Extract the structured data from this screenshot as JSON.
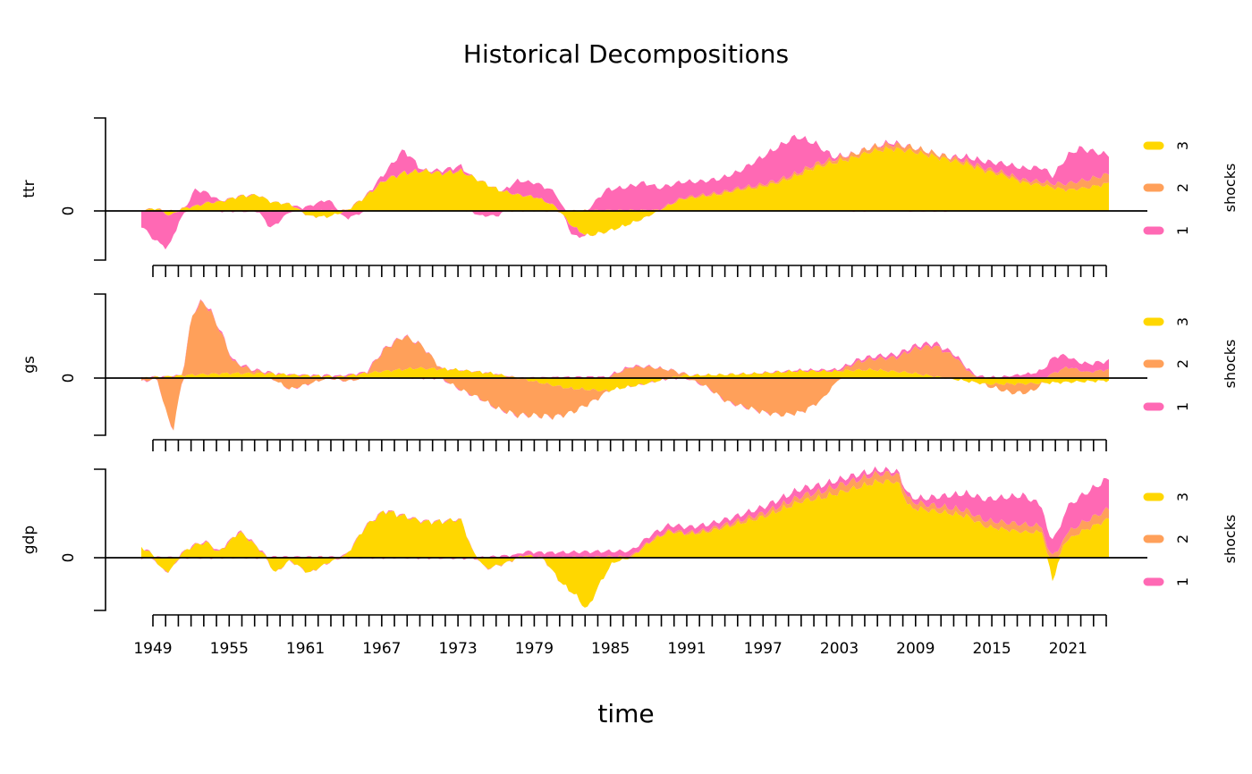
{
  "chart_data": {
    "type": "area",
    "title": "Historical Decompositions",
    "xlabel": "time",
    "x_range": [
      1948.25,
      2024.75
    ],
    "x_tick_labels": [
      "1949",
      "1955",
      "1961",
      "1967",
      "1973",
      "1979",
      "1985",
      "1991",
      "1997",
      "2003",
      "2009",
      "2015",
      "2021"
    ],
    "legend_title": "shocks",
    "legend_entries": [
      "3",
      "2",
      "1"
    ],
    "colors": {
      "1": "#FF69B4",
      "2": "#FFA05A",
      "3": "#FFD700"
    },
    "panels": [
      {
        "name": "ttr",
        "ylabel": "ttr",
        "y_tick_labels": [
          "0"
        ],
        "ylim": [
          -1,
          2
        ],
        "series": {
          "3": {
            "x": [
              1948.25,
              1949.5,
              1950.5,
              1951.5,
              1952.5,
              1953.5,
              1954.5,
              1956,
              1957.5,
              1958.5,
              1960,
              1961.5,
              1963,
              1964.5,
              1966,
              1967.5,
              1969,
              1970.5,
              1972,
              1973.5,
              1975,
              1976.5,
              1978,
              1979.5,
              1981,
              1982.3,
              1983.5,
              1985,
              1986.5,
              1988,
              1989.5,
              1991,
              1992.5,
              1994,
              1995.5,
              1997,
              1998.5,
              2000,
              2001.5,
              2003,
              2004.5,
              2006,
              2007.5,
              2009,
              2010.5,
              2012,
              2013.5,
              2015,
              2016.5,
              2018,
              2019.5,
              2020.3,
              2021.5,
              2023,
              2024.75
            ],
            "y": [
              0.0,
              0.05,
              -0.1,
              0.05,
              0.1,
              0.18,
              0.2,
              0.32,
              0.35,
              0.2,
              0.15,
              -0.1,
              -0.12,
              0.0,
              0.3,
              0.65,
              0.8,
              0.85,
              0.8,
              0.85,
              0.65,
              0.45,
              0.35,
              0.3,
              0.1,
              -0.3,
              -0.5,
              -0.42,
              -0.3,
              -0.15,
              0.05,
              0.25,
              0.3,
              0.35,
              0.45,
              0.5,
              0.6,
              0.75,
              0.95,
              1.05,
              1.15,
              1.3,
              1.35,
              1.3,
              1.2,
              1.1,
              1.0,
              0.85,
              0.75,
              0.6,
              0.55,
              0.5,
              0.45,
              0.5,
              0.6
            ]
          },
          "2": {
            "x": [
              1948.25,
              1960,
              1966,
              1970,
              1975,
              1980,
              1985,
              1990,
              1995,
              2000,
              2004,
              2008,
              2012,
              2015,
              2018,
              2020.3,
              2022,
              2024.75
            ],
            "y": [
              0.0,
              0.0,
              0.02,
              0.0,
              0.0,
              0.0,
              0.02,
              0.02,
              0.03,
              0.05,
              0.08,
              0.1,
              0.06,
              0.05,
              0.05,
              0.08,
              0.15,
              0.2
            ]
          },
          "1": {
            "x": [
              1948.25,
              1949.5,
              1950.3,
              1951.3,
              1952.5,
              1953.5,
              1954.5,
              1956,
              1957.5,
              1958.5,
              1960,
              1961.5,
              1963,
              1964.5,
              1966,
              1967.5,
              1969,
              1970.5,
              1972,
              1973.5,
              1975,
              1976.5,
              1978,
              1979.5,
              1981,
              1982.3,
              1983.5,
              1985,
              1986.5,
              1988,
              1989.5,
              1991,
              1992.5,
              1994,
              1995.5,
              1997,
              1998.5,
              2000,
              2001.5,
              2003,
              2004.5,
              2006,
              2007.5,
              2009,
              2010.5,
              2012,
              2013.5,
              2015,
              2016.5,
              2018,
              2019.5,
              2020.3,
              2021.5,
              2022.5,
              2024.75
            ],
            "y": [
              -0.3,
              -0.65,
              -0.7,
              -0.2,
              0.35,
              0.2,
              0.0,
              0.0,
              0.0,
              -0.35,
              0.0,
              0.1,
              0.25,
              -0.15,
              0.0,
              0.15,
              0.5,
              0.0,
              0.05,
              0.1,
              -0.1,
              -0.1,
              0.3,
              0.3,
              0.3,
              -0.2,
              0.0,
              0.45,
              0.5,
              0.6,
              0.45,
              0.35,
              0.3,
              0.3,
              0.35,
              0.55,
              0.7,
              0.8,
              0.45,
              0.05,
              0.0,
              0.0,
              0.05,
              0.0,
              0.0,
              0.0,
              0.1,
              0.15,
              0.2,
              0.25,
              0.3,
              0.15,
              0.6,
              0.7,
              0.4
            ]
          }
        }
      },
      {
        "name": "gs",
        "ylabel": "gs",
        "y_tick_labels": [
          "0"
        ],
        "ylim": [
          -1,
          1.5
        ],
        "series": {
          "3": {
            "x": [
              1948.25,
              1950,
              1952,
              1955,
              1958,
              1961,
              1964,
              1967,
              1970,
              1973,
              1976,
              1979,
              1982,
              1985,
              1988,
              1991,
              1994,
              1997,
              2000,
              2003,
              2006,
              2009,
              2012,
              2015,
              2018,
              2021,
              2024.75
            ],
            "y": [
              0.0,
              0.02,
              0.05,
              0.08,
              0.08,
              0.05,
              0.03,
              0.12,
              0.18,
              0.15,
              0.08,
              -0.05,
              -0.18,
              -0.22,
              -0.1,
              0.05,
              0.06,
              0.08,
              0.12,
              0.12,
              0.15,
              0.1,
              0.0,
              -0.1,
              -0.1,
              -0.08,
              -0.05
            ]
          },
          "2": {
            "x": [
              1948.25,
              1949.5,
              1950.2,
              1950.8,
              1951.5,
              1952.3,
              1953.2,
              1954.3,
              1955.5,
              1957,
              1958.5,
              1960,
              1961.5,
              1963,
              1964.5,
              1966,
              1967.5,
              1969,
              1970.5,
              1972,
              1973.5,
              1975,
              1976.5,
              1978,
              1979.5,
              1981,
              1982.5,
              1984,
              1985.5,
              1987,
              1988.5,
              1990,
              1991.5,
              1993,
              1994.5,
              1996,
              1997.5,
              1999,
              2000.5,
              2002,
              2003.5,
              2005,
              2006.5,
              2008,
              2009.5,
              2011,
              2012.5,
              2014,
              2015.5,
              2017,
              2018.5,
              2020,
              2021.5,
              2023,
              2024.75
            ],
            "y": [
              -0.05,
              0.0,
              -0.6,
              -0.9,
              0.0,
              1.1,
              1.3,
              0.85,
              0.2,
              0.05,
              0.0,
              -0.2,
              -0.1,
              0.0,
              -0.05,
              0.0,
              0.4,
              0.6,
              0.4,
              0.0,
              -0.2,
              -0.35,
              -0.55,
              -0.65,
              -0.6,
              -0.55,
              -0.4,
              -0.2,
              0.05,
              0.2,
              0.2,
              0.15,
              0.0,
              -0.15,
              -0.4,
              -0.5,
              -0.6,
              -0.65,
              -0.6,
              -0.4,
              0.0,
              0.15,
              0.2,
              0.25,
              0.45,
              0.55,
              0.4,
              0.05,
              -0.05,
              -0.15,
              -0.15,
              0.05,
              0.2,
              0.1,
              0.15
            ]
          },
          "1": {
            "x": [
              1948.25,
              1955,
              1960,
              1966,
              1972,
              1978,
              1984,
              1990,
              1996,
              2002,
              2008,
              2012,
              2016,
              2019,
              2020.5,
              2022,
              2024.75
            ],
            "y": [
              0.0,
              0.02,
              0.0,
              0.02,
              0.0,
              0.0,
              0.02,
              0.0,
              0.0,
              0.02,
              0.05,
              0.05,
              0.02,
              0.1,
              0.3,
              0.15,
              0.15
            ]
          }
        }
      },
      {
        "name": "gdp",
        "ylabel": "gdp",
        "y_tick_labels": [
          "0"
        ],
        "ylim": [
          -1,
          1.7
        ],
        "series": {
          "3": {
            "x": [
              1948.25,
              1949,
              1949.8,
              1950.5,
              1951.5,
              1952.5,
              1953.5,
              1954.3,
              1955,
              1956,
              1957,
              1958,
              1958.8,
              1960,
              1961.5,
              1963,
              1964.5,
              1966,
              1967.5,
              1969,
              1970.5,
              1972,
              1973.5,
              1974.5,
              1975.5,
              1977,
              1978.5,
              1980,
              1981.5,
              1982.5,
              1983.5,
              1984.5,
              1985.5,
              1987,
              1988.5,
              1990,
              1991.5,
              1993,
              1994.5,
              1996,
              1997.5,
              1999,
              2000.5,
              2002,
              2003.5,
              2005,
              2006.5,
              2008,
              2009,
              2010.5,
              2012,
              2013.5,
              2015,
              2016.5,
              2018,
              2019.5,
              2020.3,
              2021.2,
              2022.5,
              2024.75
            ],
            "y": [
              0.2,
              0.1,
              -0.2,
              -0.25,
              0.1,
              0.25,
              0.3,
              0.1,
              0.25,
              0.5,
              0.3,
              0.05,
              -0.3,
              -0.05,
              -0.3,
              -0.1,
              0.05,
              0.6,
              0.9,
              0.8,
              0.7,
              0.7,
              0.75,
              0.1,
              -0.2,
              -0.1,
              0.05,
              0.0,
              -0.5,
              -0.7,
              -1.0,
              -0.5,
              -0.1,
              0.0,
              0.3,
              0.5,
              0.45,
              0.5,
              0.6,
              0.7,
              0.8,
              0.95,
              1.1,
              1.15,
              1.25,
              1.35,
              1.45,
              1.45,
              0.95,
              0.9,
              0.85,
              0.8,
              0.6,
              0.55,
              0.5,
              0.5,
              -0.45,
              0.3,
              0.5,
              0.75
            ]
          },
          "2": {
            "x": [
              1948.25,
              1960,
              1970,
              1980,
              1985,
              1990,
              1995,
              2000,
              2004,
              2008,
              2010,
              2014,
              2018,
              2020.3,
              2021.5,
              2024.75
            ],
            "y": [
              0.0,
              0.0,
              0.0,
              0.0,
              0.02,
              0.02,
              0.05,
              0.1,
              0.15,
              0.15,
              0.1,
              0.1,
              0.15,
              0.1,
              0.15,
              0.2
            ]
          },
          "1": {
            "x": [
              1948.25,
              1955,
              1965,
              1975,
              1980,
              1985,
              1990,
              1995,
              2000,
              2005,
              2008,
              2010,
              2014,
              2018,
              2020.3,
              2021.5,
              2024.75
            ],
            "y": [
              0.0,
              0.02,
              0.0,
              0.0,
              0.1,
              0.1,
              0.1,
              0.1,
              0.15,
              0.1,
              0.05,
              0.1,
              0.35,
              0.55,
              0.3,
              0.5,
              0.6
            ]
          }
        }
      }
    ]
  }
}
